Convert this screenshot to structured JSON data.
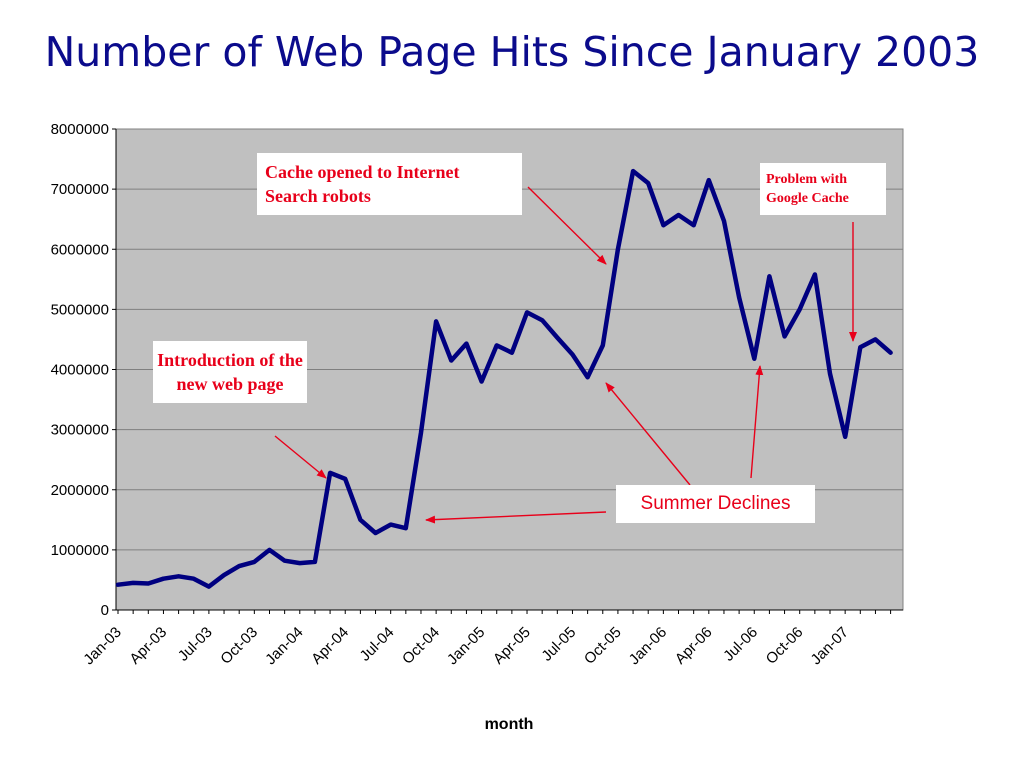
{
  "title": "Number of Web Page Hits Since January 2003",
  "chart_data": {
    "type": "line",
    "xlabel": "month",
    "ylabel": "",
    "ylim": [
      0,
      8000000
    ],
    "yticks": [
      "0",
      "1000000",
      "2000000",
      "3000000",
      "4000000",
      "5000000",
      "6000000",
      "7000000",
      "8000000"
    ],
    "xticks": [
      "Jan-03",
      "Apr-03",
      "Jul-03",
      "Oct-03",
      "Jan-04",
      "Apr-04",
      "Jul-04",
      "Oct-04",
      "Jan-05",
      "Apr-05",
      "Jul-05",
      "Oct-05",
      "Jan-06",
      "Apr-06",
      "Jul-06",
      "Oct-06",
      "Jan-07"
    ],
    "grid": true,
    "legend": "none",
    "series": [
      {
        "color": "#000080",
        "x": [
          "Jan-03",
          "Feb-03",
          "Mar-03",
          "Apr-03",
          "May-03",
          "Jun-03",
          "Jul-03",
          "Aug-03",
          "Sep-03",
          "Oct-03",
          "Nov-03",
          "Dec-03",
          "Jan-04",
          "Feb-04",
          "Mar-04",
          "Apr-04",
          "May-04",
          "Jun-04",
          "Jul-04",
          "Aug-04",
          "Sep-04",
          "Oct-04",
          "Nov-04",
          "Dec-04",
          "Jan-05",
          "Feb-05",
          "Mar-05",
          "Apr-05",
          "May-05",
          "Jun-05",
          "Jul-05",
          "Aug-05",
          "Sep-05",
          "Oct-05",
          "Nov-05",
          "Dec-05",
          "Jan-06",
          "Feb-06",
          "Mar-06",
          "Apr-06",
          "May-06",
          "Jun-06",
          "Jul-06",
          "Aug-06",
          "Sep-06",
          "Oct-06",
          "Nov-06",
          "Dec-06",
          "Jan-07",
          "Feb-07",
          "Mar-07",
          "Apr-07"
        ],
        "values": [
          420000,
          450000,
          440000,
          520000,
          560000,
          520000,
          390000,
          580000,
          730000,
          800000,
          1000000,
          820000,
          780000,
          800000,
          2280000,
          2180000,
          1500000,
          1280000,
          1420000,
          1360000,
          2950000,
          4800000,
          4150000,
          4430000,
          3800000,
          4400000,
          4280000,
          4950000,
          4820000,
          4530000,
          4250000,
          3870000,
          4400000,
          6000000,
          7300000,
          7100000,
          6400000,
          6570000,
          6400000,
          7150000,
          6470000,
          5200000,
          4180000,
          5550000,
          4550000,
          5000000,
          5580000,
          3930000,
          2880000,
          4370000,
          4500000,
          4280000
        ]
      }
    ],
    "annotations": {
      "cache": "Cache opened to Internet Search robots",
      "google": "Problem with Google Cache",
      "intro": "Introduction of the new web page",
      "summer": "Summer Declines"
    }
  }
}
